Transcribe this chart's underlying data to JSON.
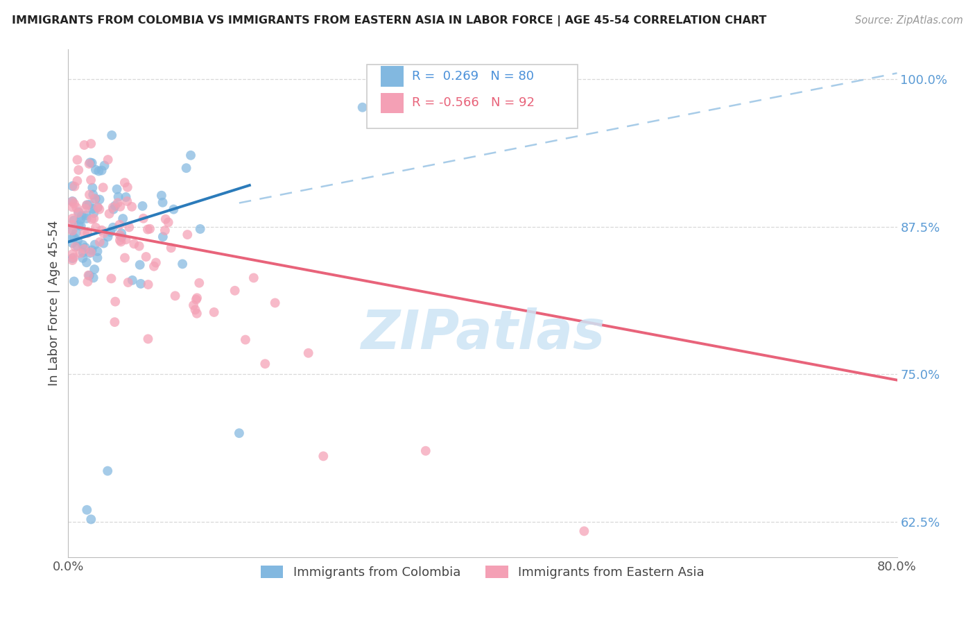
{
  "title": "IMMIGRANTS FROM COLOMBIA VS IMMIGRANTS FROM EASTERN ASIA IN LABOR FORCE | AGE 45-54 CORRELATION CHART",
  "source": "Source: ZipAtlas.com",
  "ylabel": "In Labor Force | Age 45-54",
  "legend_label1": "Immigrants from Colombia",
  "legend_label2": "Immigrants from Eastern Asia",
  "R1": 0.269,
  "N1": 80,
  "R2": -0.566,
  "N2": 92,
  "xlim": [
    0.0,
    0.8
  ],
  "ylim": [
    0.595,
    1.025
  ],
  "ytick_vals": [
    0.625,
    0.75,
    0.875,
    1.0
  ],
  "ytick_labels": [
    "62.5%",
    "75.0%",
    "87.5%",
    "100.0%"
  ],
  "xtick_vals": [
    0.0,
    0.8
  ],
  "xtick_labels": [
    "0.0%",
    "80.0%"
  ],
  "color1": "#82b8e0",
  "color2": "#f4a0b5",
  "line_color1": "#2b7bba",
  "line_color2": "#e8637a",
  "dash_color": "#a8cce8",
  "watermark_color": "#cde4f5",
  "bg_color": "#ffffff",
  "grid_color": "#d8d8d8",
  "title_color": "#222222",
  "source_color": "#999999",
  "ylabel_color": "#444444",
  "ytick_color": "#5b9bd5",
  "xtick_color": "#555555",
  "legend_edge_color": "#cccccc",
  "legend_text_color1": "#4a90d9",
  "legend_text_color2": "#e8637a",
  "blue_line_x0": 0.0,
  "blue_line_x1": 0.175,
  "blue_line_y0": 0.862,
  "blue_line_y1": 0.91,
  "pink_line_x0": 0.0,
  "pink_line_x1": 0.8,
  "pink_line_y0": 0.876,
  "pink_line_y1": 0.745,
  "dash_line_x0": 0.165,
  "dash_line_x1": 0.8,
  "dash_line_y0": 0.895,
  "dash_line_y1": 1.005
}
